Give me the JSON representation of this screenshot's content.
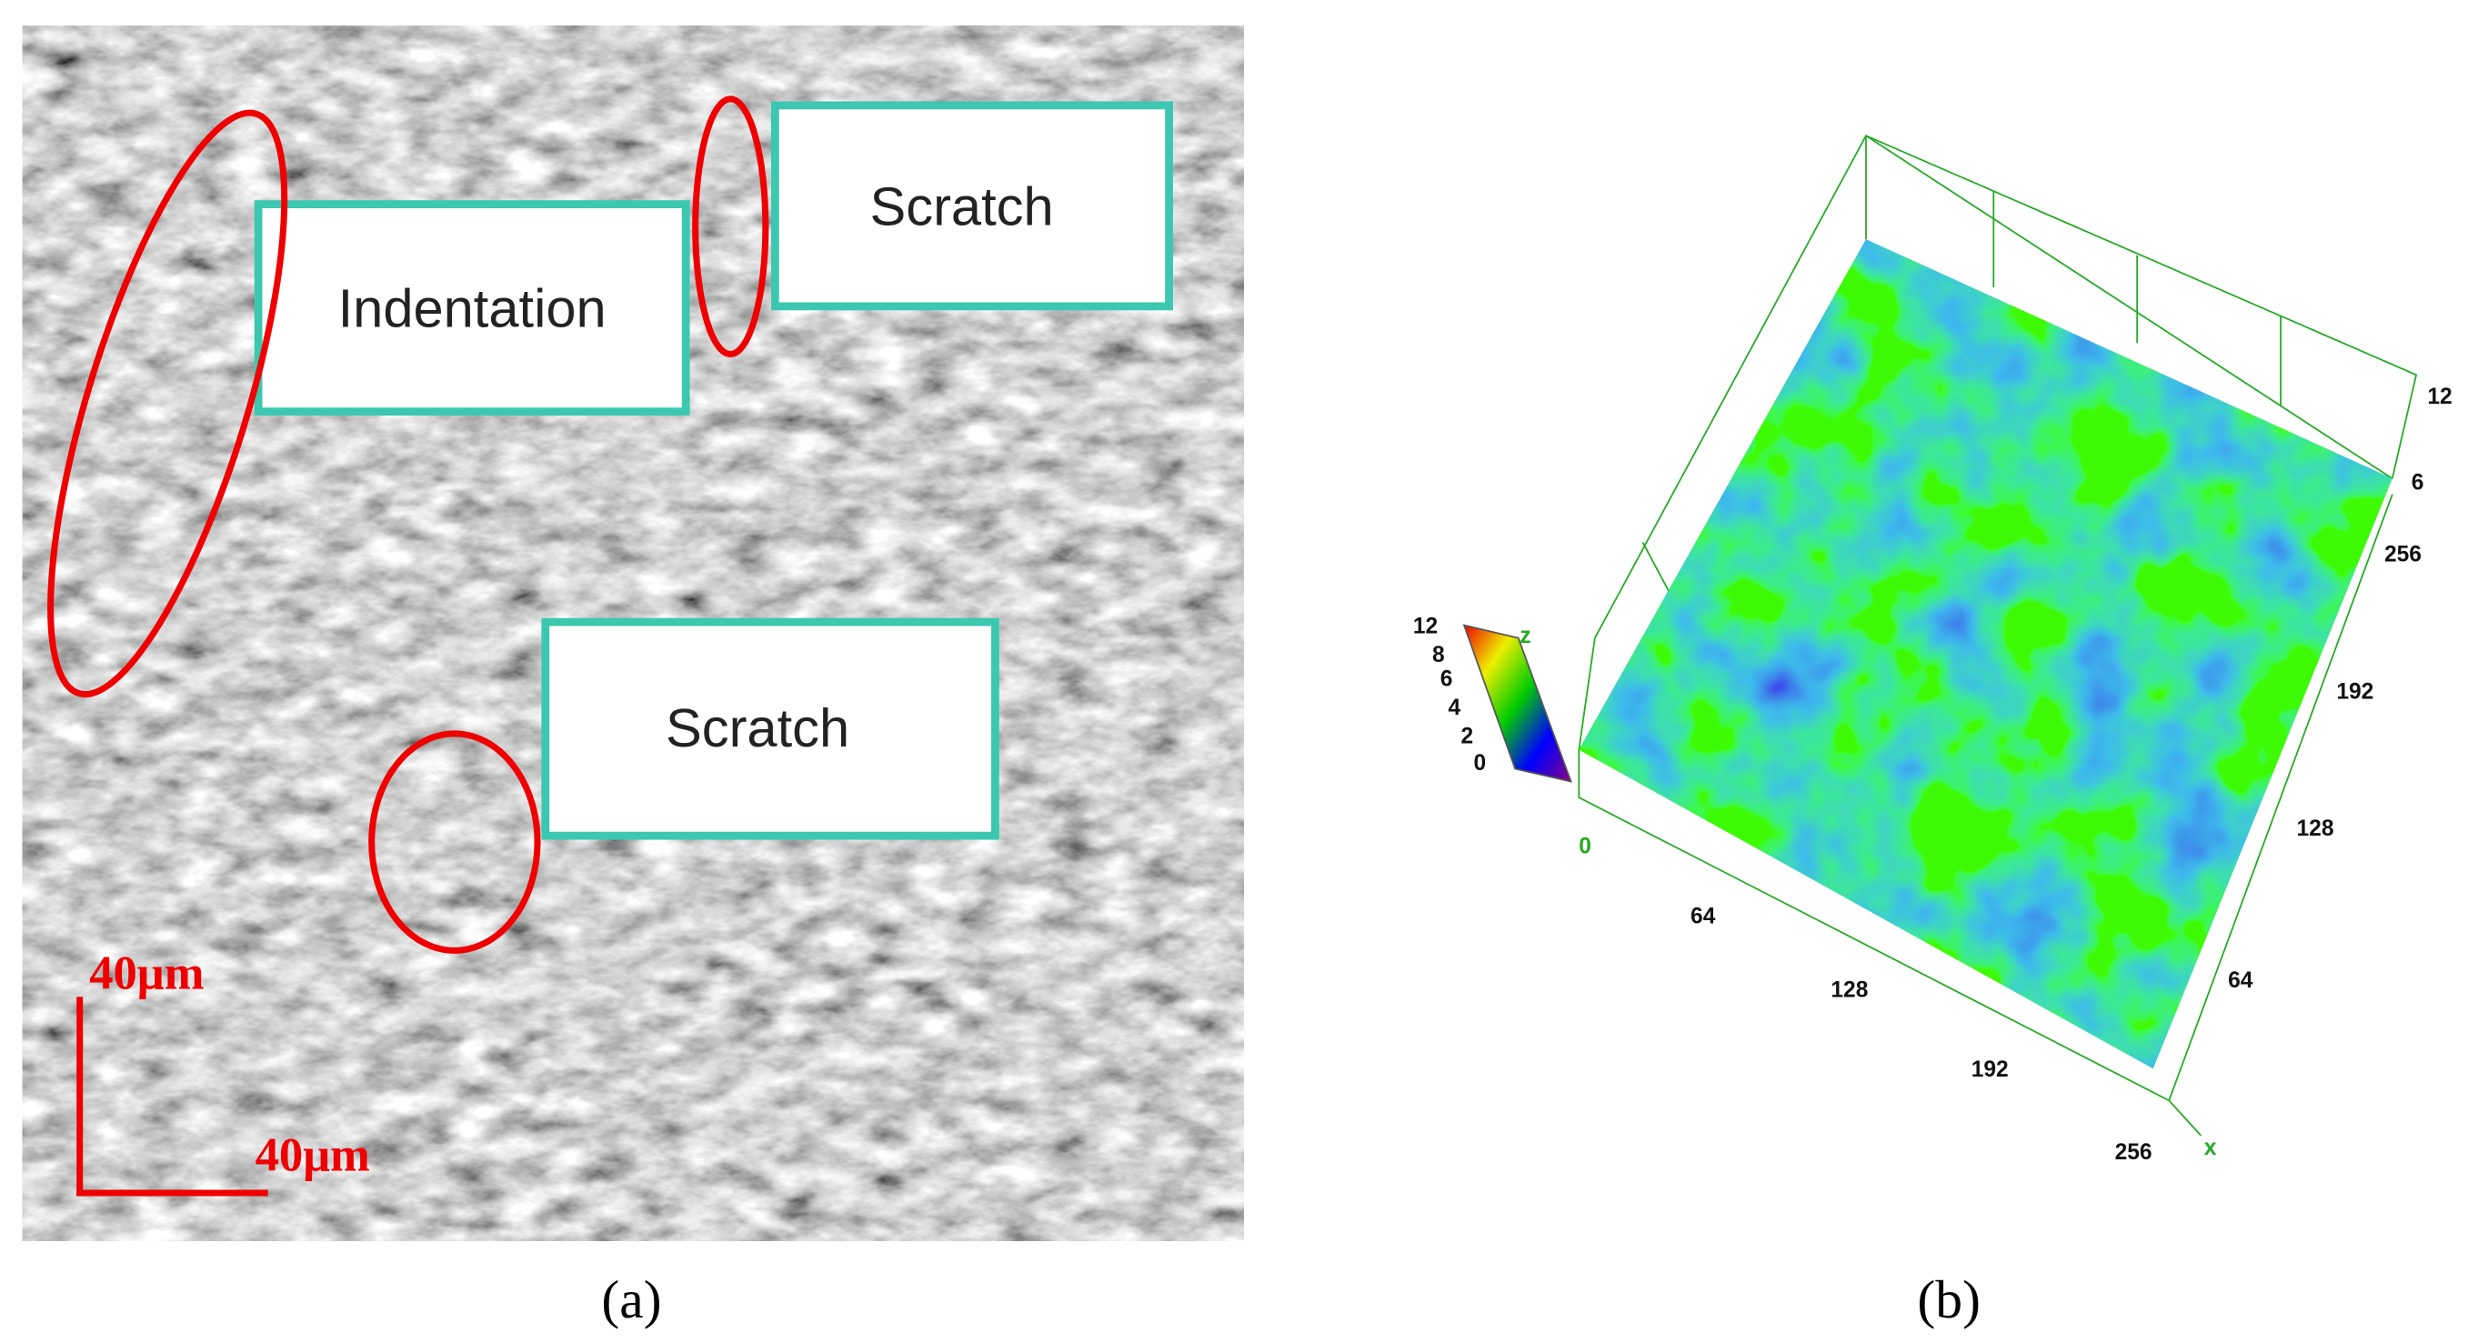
{
  "panel_a": {
    "labels": [
      "Indentation",
      "Scratch",
      "Scratch"
    ],
    "scale_labels": [
      "40μm",
      "40μm"
    ],
    "caption": "(a)"
  },
  "panel_b": {
    "y_axis_labels": [
      "256",
      "192",
      "128",
      "64"
    ],
    "x_axis_labels": [
      "0",
      "64",
      "128",
      "192",
      "256"
    ],
    "z_axis_labels": [
      "12",
      "6"
    ],
    "colorbar_labels": [
      "12",
      "8",
      "6",
      "4",
      "2",
      "0"
    ],
    "z_axis_name": "z",
    "x_axis_name": "x",
    "caption": "(b)"
  }
}
